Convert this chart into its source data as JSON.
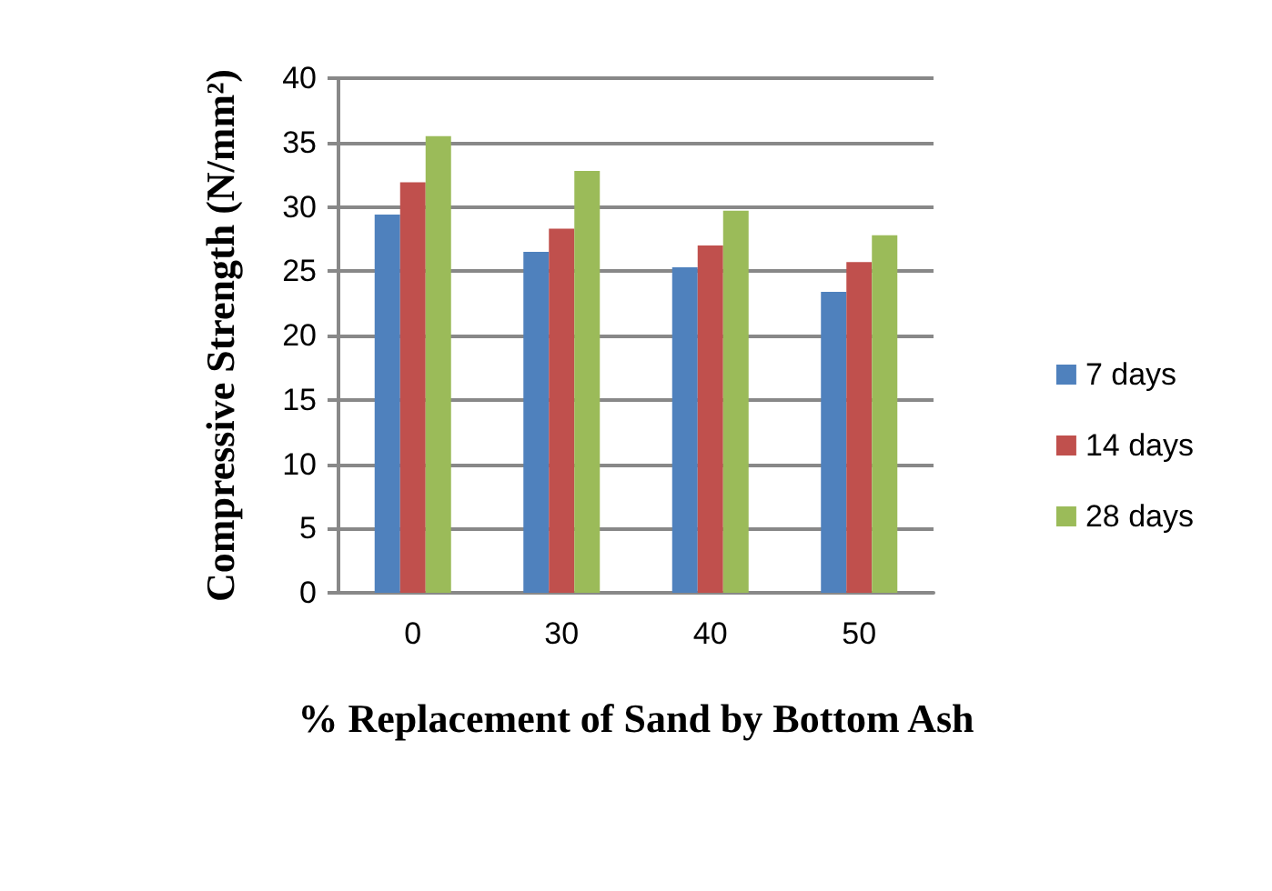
{
  "chart_data": {
    "type": "bar",
    "xlabel": "% Replacement of Sand by Bottom Ash",
    "ylabel": "Compressive Strength (N/mm²)",
    "categories": [
      "0",
      "30",
      "40",
      "50"
    ],
    "series": [
      {
        "name": "7 days",
        "color": "#4f81bd",
        "values": [
          29.4,
          26.5,
          25.3,
          23.4
        ]
      },
      {
        "name": "14 days",
        "color": "#c0504d",
        "values": [
          31.9,
          28.3,
          27.0,
          25.7
        ]
      },
      {
        "name": "28 days",
        "color": "#9bbb59",
        "values": [
          35.5,
          32.8,
          29.7,
          27.8
        ]
      }
    ],
    "ylim": [
      0,
      40
    ],
    "yticks": [
      0,
      5,
      10,
      15,
      20,
      25,
      30,
      35,
      40
    ],
    "grid": "y",
    "legend": "right"
  }
}
